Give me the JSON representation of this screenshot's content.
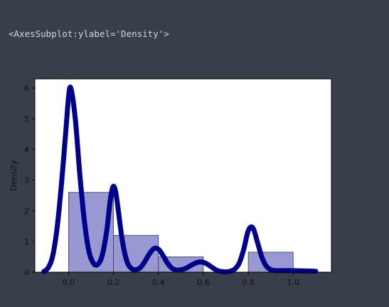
{
  "output_text": "<AxesSubplot:ylabel='Density'>",
  "colors": {
    "background": "#383e4a",
    "plot_background": "#ffffff",
    "hist_fill": "#9898d2",
    "hist_edge": "#3a3a52",
    "kde_line": "#00008b"
  },
  "chart_data": {
    "type": "bar",
    "title": "",
    "xlabel": "",
    "ylabel": "Density",
    "xlim": [
      -0.15,
      1.17
    ],
    "ylim": [
      0,
      6.3
    ],
    "xticks": [
      "0.0",
      "0.2",
      "0.4",
      "0.6",
      "0.8",
      "1.0"
    ],
    "yticks": [
      "0",
      "1",
      "2",
      "3",
      "4",
      "5",
      "6"
    ],
    "grid": false,
    "histogram": {
      "bins": [
        {
          "x0": 0.0,
          "x1": 0.2,
          "density": 2.6
        },
        {
          "x0": 0.2,
          "x1": 0.4,
          "density": 1.2
        },
        {
          "x0": 0.4,
          "x1": 0.6,
          "density": 0.5
        },
        {
          "x0": 0.6,
          "x1": 0.8,
          "density": 0.0
        },
        {
          "x0": 0.8,
          "x1": 1.0,
          "density": 0.65
        }
      ]
    },
    "kde": {
      "x": [
        -0.11,
        -0.09,
        -0.07,
        -0.05,
        -0.03,
        -0.01,
        0.0,
        0.01,
        0.03,
        0.05,
        0.07,
        0.09,
        0.11,
        0.13,
        0.15,
        0.17,
        0.18,
        0.19,
        0.2,
        0.21,
        0.22,
        0.24,
        0.26,
        0.28,
        0.3,
        0.32,
        0.34,
        0.36,
        0.38,
        0.4,
        0.42,
        0.44,
        0.46,
        0.48,
        0.5,
        0.52,
        0.54,
        0.56,
        0.58,
        0.6,
        0.62,
        0.64,
        0.66,
        0.68,
        0.7,
        0.72,
        0.74,
        0.76,
        0.78,
        0.8,
        0.82,
        0.84,
        0.86,
        0.88,
        0.9,
        0.92,
        0.95,
        1.0,
        1.05,
        1.1
      ],
      "y": [
        0.02,
        0.15,
        0.55,
        1.5,
        3.0,
        4.8,
        5.7,
        6.0,
        5.0,
        3.2,
        1.7,
        0.7,
        0.3,
        0.25,
        0.55,
        1.35,
        2.0,
        2.55,
        2.8,
        2.6,
        2.1,
        1.0,
        0.35,
        0.12,
        0.08,
        0.15,
        0.35,
        0.6,
        0.77,
        0.75,
        0.55,
        0.3,
        0.13,
        0.07,
        0.08,
        0.12,
        0.2,
        0.28,
        0.33,
        0.32,
        0.25,
        0.15,
        0.06,
        0.02,
        0.01,
        0.03,
        0.1,
        0.3,
        0.75,
        1.35,
        1.45,
        1.0,
        0.5,
        0.2,
        0.08,
        0.05,
        0.05,
        0.05,
        0.04,
        0.03
      ]
    }
  }
}
